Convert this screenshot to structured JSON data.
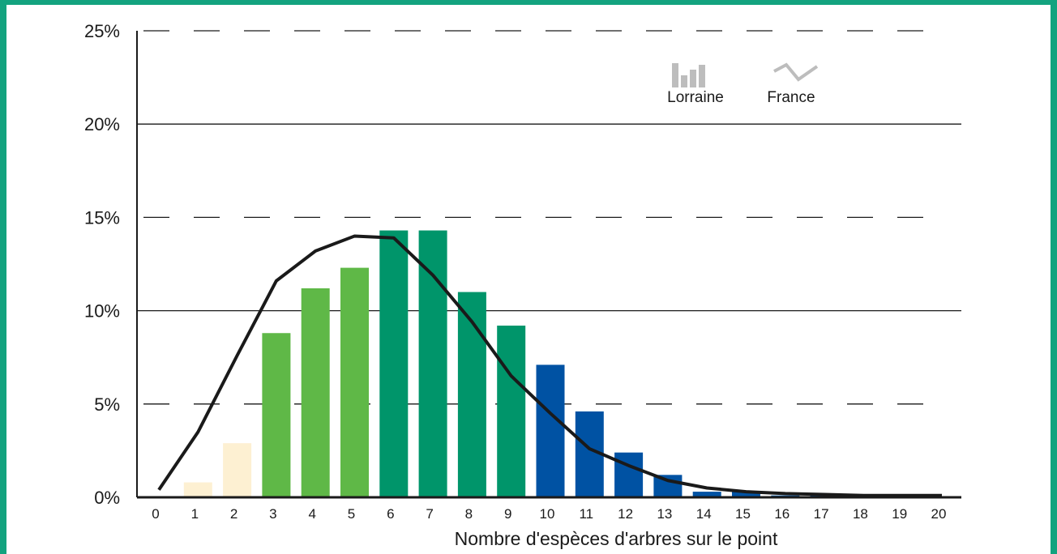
{
  "chart_data": {
    "type": "bar",
    "title": "",
    "xlabel": "Nombre d'espèces d'arbres sur le point",
    "ylabel": "",
    "categories": [
      "0",
      "1",
      "2",
      "3",
      "4",
      "5",
      "6",
      "7",
      "8",
      "9",
      "10",
      "11",
      "12",
      "13",
      "14",
      "15",
      "16",
      "17",
      "18",
      "19",
      "20"
    ],
    "ylim": [
      0,
      25
    ],
    "yticks": [
      "0%",
      "5%",
      "10%",
      "15%",
      "20%",
      "25%"
    ],
    "series": [
      {
        "name": "Lorraine",
        "kind": "bar",
        "values": [
          0,
          0.8,
          2.9,
          8.8,
          11.2,
          12.3,
          14.3,
          14.3,
          11.0,
          9.2,
          7.1,
          4.6,
          2.4,
          1.2,
          0.3,
          0.3,
          0.1,
          0.1,
          0.05,
          0.05,
          0.05
        ],
        "colors": [
          "#fdf0d2",
          "#fdf0d2",
          "#fdf0d2",
          "#5fb847",
          "#5fb847",
          "#5fb847",
          "#00956a",
          "#00956a",
          "#00956a",
          "#00956a",
          "#0052a3",
          "#0052a3",
          "#0052a3",
          "#0052a3",
          "#0052a3",
          "#0052a3",
          "#0052a3",
          "#0052a3",
          "#0052a3",
          "#0052a3",
          "#0052a3"
        ]
      },
      {
        "name": "France",
        "kind": "line",
        "color": "#1a1a1a",
        "values": [
          0.4,
          3.5,
          7.6,
          11.6,
          13.2,
          14.0,
          13.9,
          11.9,
          9.4,
          6.5,
          4.5,
          2.6,
          1.7,
          0.9,
          0.5,
          0.3,
          0.2,
          0.15,
          0.1,
          0.1,
          0.1
        ]
      }
    ],
    "legend": {
      "position": "top-right",
      "items": [
        {
          "label": "Lorraine",
          "icon": "bar-chart-icon",
          "color": "#bdbdbd"
        },
        {
          "label": "France",
          "icon": "line-chart-icon",
          "color": "#bdbdbd"
        }
      ]
    },
    "grid": {
      "solid_at": [
        "10%",
        "20%"
      ],
      "dashed_at": [
        "5%",
        "15%",
        "25%"
      ]
    }
  },
  "colors": {
    "frame": "#13a37f",
    "axis": "#1a1a1a"
  }
}
